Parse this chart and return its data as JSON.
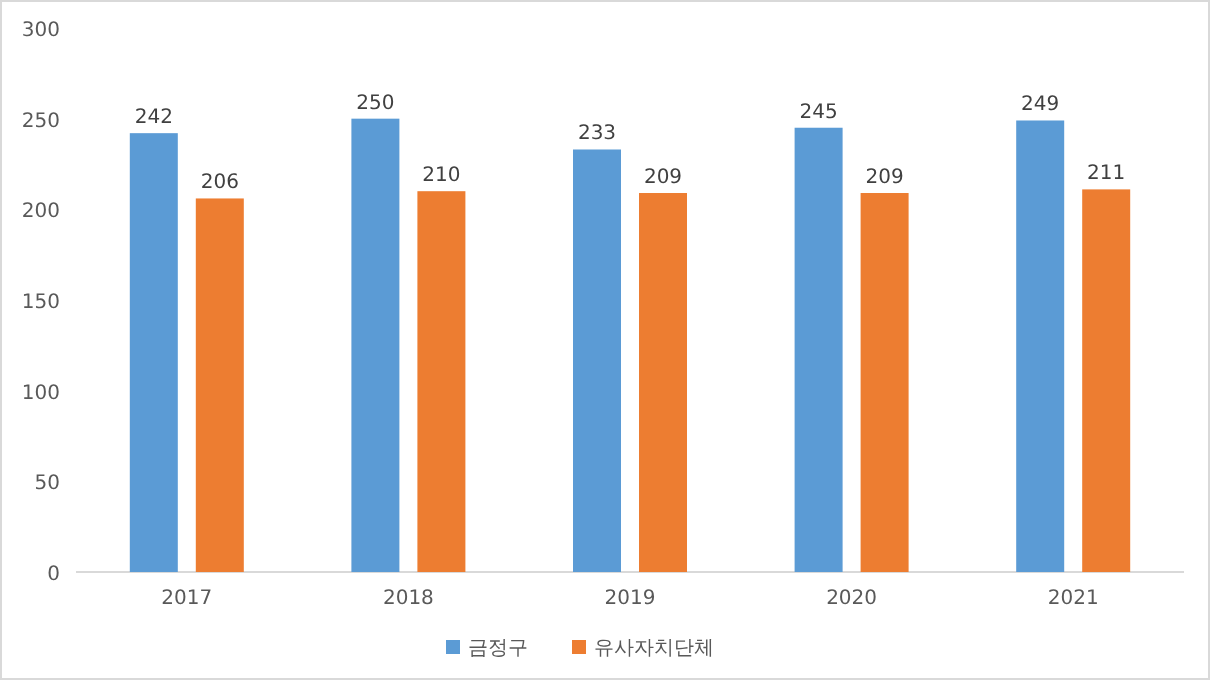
{
  "chart_data": {
    "type": "bar",
    "categories": [
      "2017",
      "2018",
      "2019",
      "2020",
      "2021"
    ],
    "series": [
      {
        "name": "금정구",
        "color": "#5b9bd5",
        "values": [
          242,
          250,
          233,
          245,
          249
        ]
      },
      {
        "name": "유사자치단체",
        "color": "#ed7d31",
        "values": [
          206,
          210,
          209,
          209,
          211
        ]
      }
    ],
    "ylim": [
      0,
      300
    ],
    "yticks": [
      0,
      50,
      100,
      150,
      200,
      250,
      300
    ],
    "data_labels": true,
    "legend": "bottom",
    "grid": false
  }
}
